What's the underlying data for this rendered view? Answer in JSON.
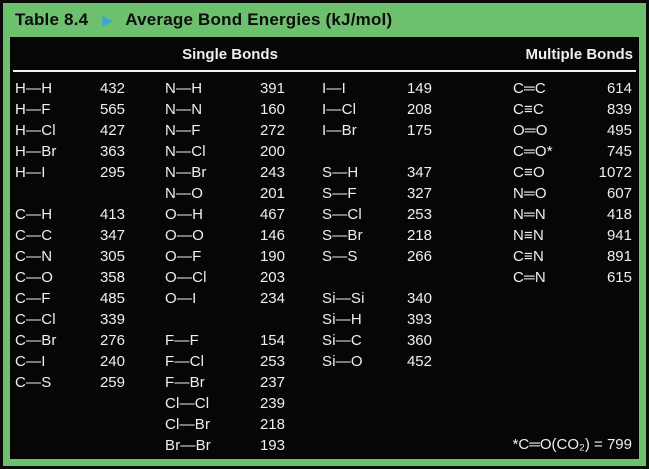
{
  "header": {
    "table_label": "Table 8.4",
    "arrow_icon": "▶",
    "title": "Average Bond Energies (kJ/mol)"
  },
  "columns": {
    "single_bonds": "Single Bonds",
    "multiple_bonds": "Multiple Bonds"
  },
  "rows": [
    [
      "H—H",
      "432",
      "N—H",
      "391",
      "I—I",
      "149",
      "C═C",
      "614"
    ],
    [
      "H—F",
      "565",
      "N—N",
      "160",
      "I—Cl",
      "208",
      "C≡C",
      "839"
    ],
    [
      "H—Cl",
      "427",
      "N—F",
      "272",
      "I—Br",
      "175",
      "O═O",
      "495"
    ],
    [
      "H—Br",
      "363",
      "N—Cl",
      "200",
      "",
      "",
      "C═O*",
      "745"
    ],
    [
      "H—I",
      "295",
      "N—Br",
      "243",
      "S—H",
      "347",
      "C≡O",
      "1072"
    ],
    [
      "",
      "",
      "N—O",
      "201",
      "S—F",
      "327",
      "N═O",
      "607"
    ],
    [
      "C—H",
      "413",
      "O—H",
      "467",
      "S—Cl",
      "253",
      "N═N",
      "418"
    ],
    [
      "C—C",
      "347",
      "O—O",
      "146",
      "S—Br",
      "218",
      "N≡N",
      "941"
    ],
    [
      "C—N",
      "305",
      "O—F",
      "190",
      "S—S",
      "266",
      "C≡N",
      "891"
    ],
    [
      "C—O",
      "358",
      "O—Cl",
      "203",
      "",
      "",
      "C═N",
      "615"
    ],
    [
      "C—F",
      "485",
      "O—I",
      "234",
      "Si—Si",
      "340",
      "",
      ""
    ],
    [
      "C—Cl",
      "339",
      "",
      "",
      "Si—H",
      "393",
      "",
      ""
    ],
    [
      "C—Br",
      "276",
      "F—F",
      "154",
      "Si—C",
      "360",
      "",
      ""
    ],
    [
      "C—I",
      "240",
      "F—Cl",
      "253",
      "Si—O",
      "452",
      "",
      ""
    ],
    [
      "C—S",
      "259",
      "F—Br",
      "237",
      "",
      "",
      "",
      ""
    ],
    [
      "",
      "",
      "Cl—Cl",
      "239",
      "",
      "",
      "",
      ""
    ],
    [
      "",
      "",
      "Cl—Br",
      "218",
      "",
      "",
      "",
      ""
    ],
    [
      "",
      "",
      "Br—Br",
      "193",
      "",
      "",
      "",
      ""
    ]
  ],
  "footnote": "*C═O(CO₂) = 799",
  "colors": {
    "frame_green": "#6dc06d",
    "panel_black": "#060606",
    "arrow_blue": "#37a6d9",
    "text_white": "#efefed",
    "title_text": "#0d0d0d"
  }
}
